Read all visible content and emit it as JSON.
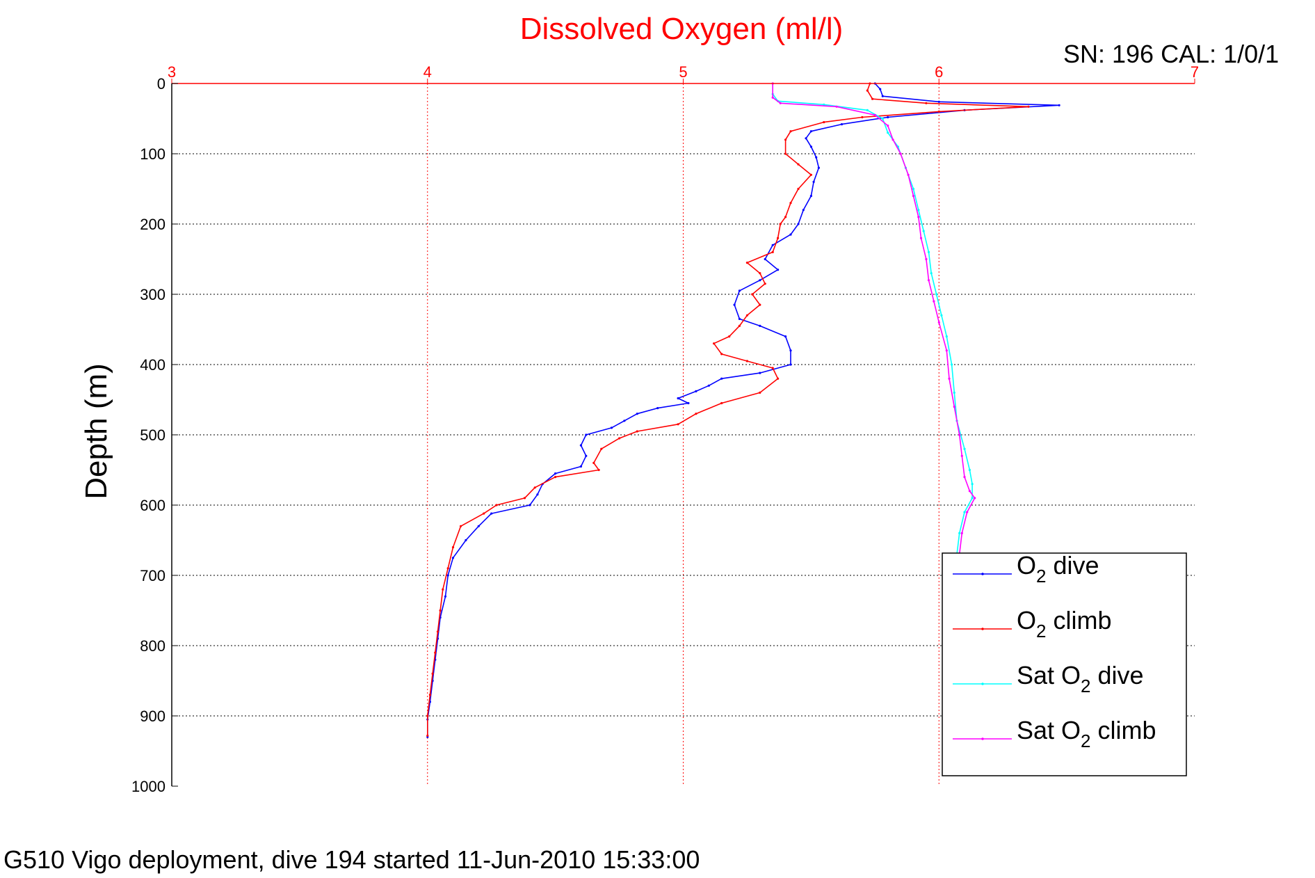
{
  "figure": {
    "title": "Dissolved Oxygen (ml/l)",
    "serial_label": "SN: 196  CAL: 1/0/1",
    "footer": "G510 Vigo deployment, dive 194 started 11-Jun-2010 15:33:00"
  },
  "chart_data": {
    "type": "line",
    "title": "Dissolved Oxygen (ml/l)",
    "xlabel": "",
    "ylabel": "Depth (m)",
    "xlim": [
      3,
      7
    ],
    "ylim": [
      0,
      1000
    ],
    "y_reversed": true,
    "x_axis_position": "top",
    "grid": true,
    "legend_position": "bottom-right",
    "x_ticks": [
      "3",
      "4",
      "5",
      "6",
      "7"
    ],
    "y_ticks": [
      "0",
      "100",
      "200",
      "300",
      "400",
      "500",
      "600",
      "700",
      "800",
      "900",
      "1000"
    ],
    "axis_color": "#ff0000",
    "series": [
      {
        "name": "O2 dive",
        "legend": {
          "main": "O",
          "sub": "2",
          "rest": " dive"
        },
        "color": "#0000ff",
        "points": [
          [
            5.75,
            0
          ],
          [
            5.77,
            8
          ],
          [
            5.78,
            18
          ],
          [
            6.0,
            26
          ],
          [
            6.47,
            31
          ],
          [
            6.1,
            38
          ],
          [
            5.8,
            48
          ],
          [
            5.62,
            58
          ],
          [
            5.5,
            68
          ],
          [
            5.48,
            78
          ],
          [
            5.5,
            90
          ],
          [
            5.52,
            105
          ],
          [
            5.53,
            120
          ],
          [
            5.51,
            140
          ],
          [
            5.5,
            160
          ],
          [
            5.47,
            180
          ],
          [
            5.45,
            200
          ],
          [
            5.42,
            215
          ],
          [
            5.35,
            230
          ],
          [
            5.32,
            250
          ],
          [
            5.37,
            265
          ],
          [
            5.3,
            280
          ],
          [
            5.22,
            295
          ],
          [
            5.2,
            315
          ],
          [
            5.22,
            335
          ],
          [
            5.3,
            345
          ],
          [
            5.4,
            360
          ],
          [
            5.42,
            380
          ],
          [
            5.42,
            400
          ],
          [
            5.3,
            412
          ],
          [
            5.15,
            420
          ],
          [
            5.1,
            430
          ],
          [
            5.05,
            438
          ],
          [
            4.98,
            448
          ],
          [
            5.02,
            455
          ],
          [
            4.9,
            462
          ],
          [
            4.82,
            470
          ],
          [
            4.77,
            480
          ],
          [
            4.72,
            490
          ],
          [
            4.62,
            500
          ],
          [
            4.6,
            515
          ],
          [
            4.62,
            530
          ],
          [
            4.6,
            545
          ],
          [
            4.5,
            555
          ],
          [
            4.45,
            570
          ],
          [
            4.43,
            585
          ],
          [
            4.4,
            600
          ],
          [
            4.25,
            612
          ],
          [
            4.2,
            630
          ],
          [
            4.15,
            650
          ],
          [
            4.1,
            675
          ],
          [
            4.08,
            700
          ],
          [
            4.07,
            730
          ],
          [
            4.05,
            760
          ],
          [
            4.04,
            790
          ],
          [
            4.03,
            820
          ],
          [
            4.02,
            850
          ],
          [
            4.01,
            880
          ],
          [
            4.0,
            905
          ],
          [
            4.0,
            930
          ]
        ]
      },
      {
        "name": "O2 climb",
        "legend": {
          "main": "O",
          "sub": "2",
          "rest": " climb"
        },
        "color": "#ff0000",
        "points": [
          [
            5.73,
            0
          ],
          [
            5.72,
            10
          ],
          [
            5.74,
            22
          ],
          [
            5.95,
            28
          ],
          [
            6.35,
            33
          ],
          [
            6.0,
            40
          ],
          [
            5.7,
            48
          ],
          [
            5.55,
            55
          ],
          [
            5.42,
            68
          ],
          [
            5.4,
            80
          ],
          [
            5.4,
            100
          ],
          [
            5.45,
            115
          ],
          [
            5.5,
            130
          ],
          [
            5.45,
            150
          ],
          [
            5.42,
            170
          ],
          [
            5.4,
            190
          ],
          [
            5.38,
            200
          ],
          [
            5.37,
            220
          ],
          [
            5.35,
            240
          ],
          [
            5.25,
            255
          ],
          [
            5.3,
            270
          ],
          [
            5.32,
            285
          ],
          [
            5.27,
            300
          ],
          [
            5.3,
            315
          ],
          [
            5.25,
            330
          ],
          [
            5.22,
            345
          ],
          [
            5.18,
            360
          ],
          [
            5.12,
            370
          ],
          [
            5.15,
            385
          ],
          [
            5.25,
            395
          ],
          [
            5.35,
            405
          ],
          [
            5.37,
            420
          ],
          [
            5.3,
            440
          ],
          [
            5.15,
            455
          ],
          [
            5.05,
            470
          ],
          [
            4.98,
            485
          ],
          [
            4.82,
            495
          ],
          [
            4.75,
            505
          ],
          [
            4.68,
            520
          ],
          [
            4.65,
            540
          ],
          [
            4.67,
            550
          ],
          [
            4.5,
            560
          ],
          [
            4.42,
            575
          ],
          [
            4.38,
            590
          ],
          [
            4.27,
            600
          ],
          [
            4.22,
            612
          ],
          [
            4.13,
            630
          ],
          [
            4.1,
            660
          ],
          [
            4.08,
            690
          ],
          [
            4.06,
            720
          ],
          [
            4.05,
            750
          ],
          [
            4.04,
            780
          ],
          [
            4.03,
            810
          ],
          [
            4.02,
            840
          ],
          [
            4.01,
            870
          ],
          [
            4.0,
            900
          ],
          [
            4.0,
            928
          ]
        ]
      },
      {
        "name": "Sat O2 dive",
        "legend": {
          "main": "Sat O",
          "sub": "2",
          "rest": " dive"
        },
        "color": "#00ffff",
        "points": [
          [
            5.35,
            0
          ],
          [
            5.35,
            15
          ],
          [
            5.37,
            25
          ],
          [
            5.55,
            30
          ],
          [
            5.72,
            38
          ],
          [
            5.78,
            50
          ],
          [
            5.8,
            70
          ],
          [
            5.84,
            90
          ],
          [
            5.87,
            120
          ],
          [
            5.9,
            150
          ],
          [
            5.92,
            180
          ],
          [
            5.94,
            210
          ],
          [
            5.96,
            240
          ],
          [
            5.97,
            270
          ],
          [
            5.99,
            300
          ],
          [
            6.01,
            330
          ],
          [
            6.03,
            360
          ],
          [
            6.05,
            400
          ],
          [
            6.06,
            440
          ],
          [
            6.07,
            480
          ],
          [
            6.1,
            520
          ],
          [
            6.12,
            550
          ],
          [
            6.13,
            570
          ],
          [
            6.13,
            590
          ],
          [
            6.1,
            610
          ],
          [
            6.08,
            640
          ],
          [
            6.07,
            670
          ]
        ]
      },
      {
        "name": "Sat O2 climb",
        "legend": {
          "main": "Sat O",
          "sub": "2",
          "rest": " climb"
        },
        "color": "#ff00ff",
        "points": [
          [
            5.35,
            0
          ],
          [
            5.35,
            20
          ],
          [
            5.38,
            28
          ],
          [
            5.6,
            33
          ],
          [
            5.75,
            45
          ],
          [
            5.8,
            60
          ],
          [
            5.82,
            80
          ],
          [
            5.85,
            100
          ],
          [
            5.88,
            130
          ],
          [
            5.9,
            160
          ],
          [
            5.92,
            190
          ],
          [
            5.93,
            220
          ],
          [
            5.95,
            250
          ],
          [
            5.96,
            280
          ],
          [
            5.98,
            310
          ],
          [
            6.0,
            340
          ],
          [
            6.03,
            380
          ],
          [
            6.04,
            420
          ],
          [
            6.06,
            460
          ],
          [
            6.08,
            500
          ],
          [
            6.09,
            530
          ],
          [
            6.1,
            560
          ],
          [
            6.12,
            580
          ],
          [
            6.14,
            590
          ],
          [
            6.11,
            610
          ],
          [
            6.09,
            640
          ],
          [
            6.08,
            670
          ]
        ]
      }
    ]
  }
}
